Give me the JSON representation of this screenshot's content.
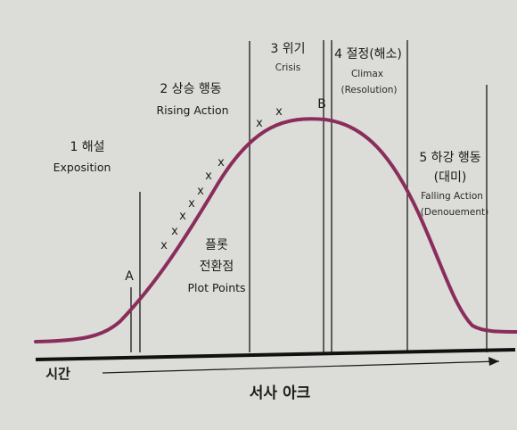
{
  "colors": {
    "page_background": "#dcdcd8",
    "curve": "#8a2d5c",
    "lines": "#1a1a1a"
  },
  "stages": [
    {
      "number_title": "1 해설",
      "english": "Exposition"
    },
    {
      "number_title": "2 상승 행동",
      "english": "Rising Action"
    },
    {
      "number_title": "3 위기",
      "english": "Crisis"
    },
    {
      "number_title": "4 절정(해소)",
      "english_line1": "Climax",
      "english_line2": "(Resolution)"
    },
    {
      "number_title": "5 하강 행동",
      "korean_line2": "(대미)",
      "english_line1": "Falling Action",
      "english_line2": "(Denouement)"
    }
  ],
  "plot_points": {
    "korean_line1": "플롯",
    "korean_line2": "전환점",
    "english": "Plot Points"
  },
  "point_labels": {
    "a": "A",
    "b": "B"
  },
  "marker_symbol": "x",
  "axis": {
    "time_label": "시간",
    "arc_label": "서사 아크"
  }
}
